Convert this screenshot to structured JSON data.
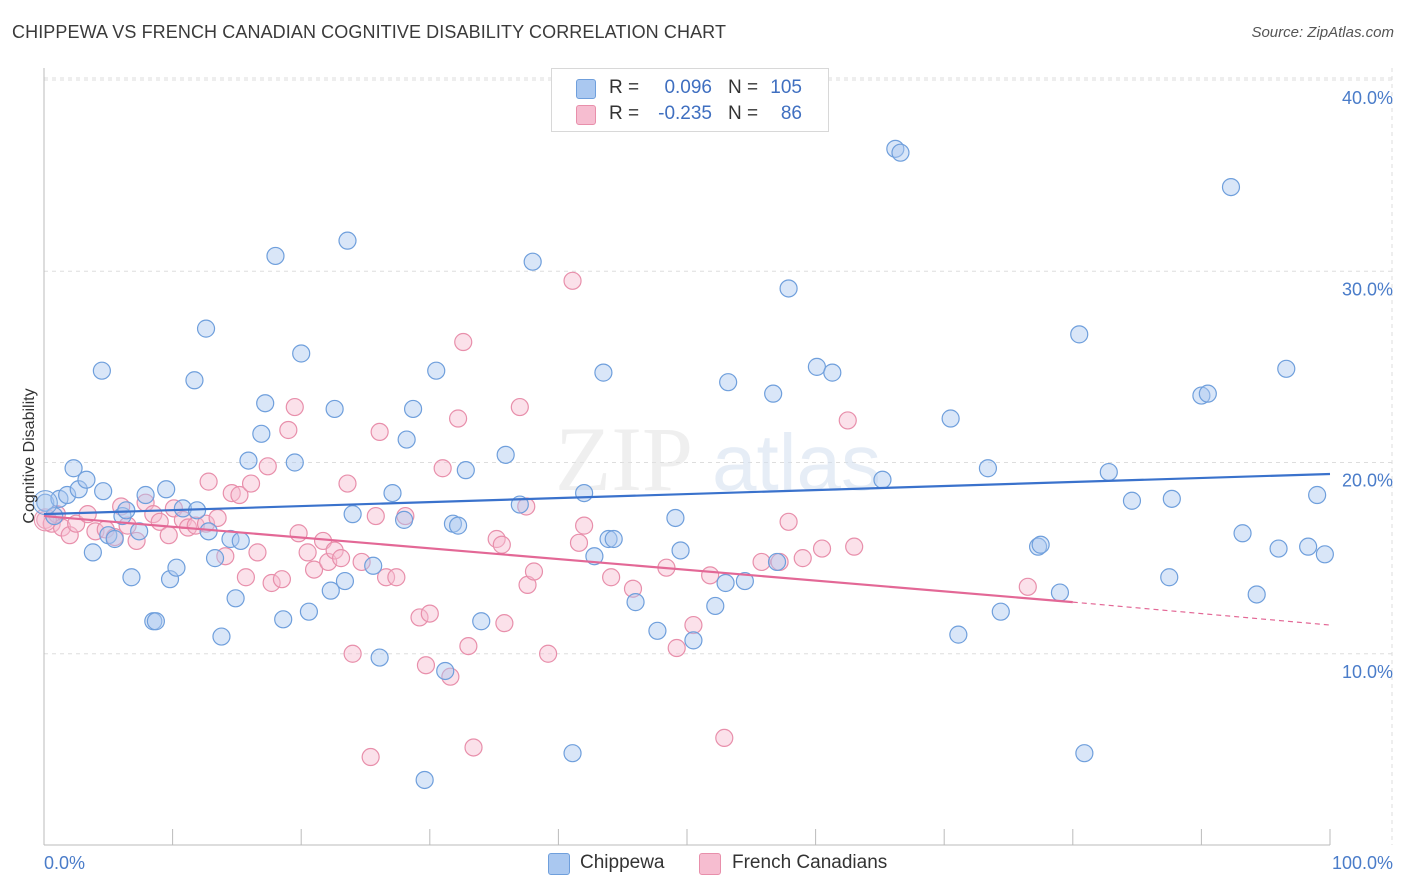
{
  "title": "CHIPPEWA VS FRENCH CANADIAN COGNITIVE DISABILITY CORRELATION CHART",
  "source": "Source: ZipAtlas.com",
  "watermark": {
    "zip": "ZIP",
    "atlas": "atlas"
  },
  "legend": {
    "rows": [
      {
        "r_label": "R =",
        "r_value": "0.096",
        "n_label": "N =",
        "n_value": "105"
      },
      {
        "r_label": "R =",
        "r_value": "-0.235",
        "n_label": "N =",
        "n_value": "86"
      }
    ]
  },
  "bottom_legend": {
    "chippewa": "Chippewa",
    "french": "French Canadians"
  },
  "colors": {
    "chippewa_fill": "#aac8f0",
    "chippewa_stroke": "#6f9fdc",
    "chippewa_line": "#3a72cc",
    "french_fill": "#f6bdd0",
    "french_stroke": "#e88fab",
    "french_line": "#e36896",
    "tick_text": "#4a7cc9",
    "grid": "#dddddd"
  },
  "chart_data": {
    "type": "scatter",
    "title": "CHIPPEWA VS FRENCH CANADIAN COGNITIVE DISABILITY CORRELATION CHART",
    "xlabel": "",
    "ylabel": "Cognitive Disability",
    "xlim": [
      0,
      100
    ],
    "ylim": [
      0,
      43
    ],
    "y_ticks": [
      10,
      20,
      30,
      40
    ],
    "y_tick_labels": [
      "10.0%",
      "20.0%",
      "30.0%",
      "40.0%"
    ],
    "x_tick_labels": [
      "0.0%",
      "100.0%"
    ],
    "grid": true,
    "legend_position": "top-center",
    "series": [
      {
        "name": "Chippewa",
        "R": 0.096,
        "N": 105,
        "trend": {
          "x": [
            0,
            100
          ],
          "y": [
            17.3,
            19.4
          ]
        },
        "points": [
          [
            0.1,
            17.9
          ],
          [
            0.8,
            17.2
          ],
          [
            1.2,
            18.1
          ],
          [
            1.8,
            18.3
          ],
          [
            2.3,
            19.7
          ],
          [
            2.7,
            18.6
          ],
          [
            3.3,
            19.1
          ],
          [
            3.8,
            15.3
          ],
          [
            4.5,
            24.8
          ],
          [
            4.6,
            18.5
          ],
          [
            5.0,
            16.2
          ],
          [
            5.5,
            16.0
          ],
          [
            6.1,
            17.2
          ],
          [
            6.4,
            17.5
          ],
          [
            6.8,
            14.0
          ],
          [
            7.4,
            16.4
          ],
          [
            7.9,
            18.3
          ],
          [
            8.5,
            11.7
          ],
          [
            8.7,
            11.7
          ],
          [
            9.5,
            18.6
          ],
          [
            9.8,
            13.9
          ],
          [
            10.3,
            14.5
          ],
          [
            10.8,
            17.6
          ],
          [
            11.7,
            24.3
          ],
          [
            11.9,
            17.5
          ],
          [
            12.6,
            27.0
          ],
          [
            12.8,
            16.4
          ],
          [
            13.3,
            15.0
          ],
          [
            13.8,
            10.9
          ],
          [
            14.5,
            16.0
          ],
          [
            14.9,
            12.9
          ],
          [
            15.3,
            15.9
          ],
          [
            15.9,
            20.1
          ],
          [
            16.9,
            21.5
          ],
          [
            17.2,
            23.1
          ],
          [
            18.0,
            30.8
          ],
          [
            18.6,
            11.8
          ],
          [
            19.5,
            20.0
          ],
          [
            20.0,
            25.7
          ],
          [
            20.6,
            12.2
          ],
          [
            22.3,
            13.3
          ],
          [
            22.6,
            22.8
          ],
          [
            23.4,
            13.8
          ],
          [
            23.6,
            31.6
          ],
          [
            24.0,
            17.3
          ],
          [
            25.6,
            14.6
          ],
          [
            26.1,
            9.8
          ],
          [
            27.1,
            18.4
          ],
          [
            28.0,
            17.0
          ],
          [
            28.2,
            21.2
          ],
          [
            28.7,
            22.8
          ],
          [
            29.6,
            3.4
          ],
          [
            30.5,
            24.8
          ],
          [
            31.2,
            9.1
          ],
          [
            31.8,
            16.8
          ],
          [
            32.2,
            16.7
          ],
          [
            32.8,
            19.6
          ],
          [
            34.0,
            11.7
          ],
          [
            35.9,
            20.4
          ],
          [
            37.0,
            17.8
          ],
          [
            38.0,
            30.5
          ],
          [
            41.1,
            4.8
          ],
          [
            42.0,
            18.4
          ],
          [
            42.8,
            15.1
          ],
          [
            43.5,
            24.7
          ],
          [
            43.9,
            16.0
          ],
          [
            44.3,
            16.0
          ],
          [
            46.0,
            12.7
          ],
          [
            47.7,
            11.2
          ],
          [
            49.1,
            17.1
          ],
          [
            49.5,
            15.4
          ],
          [
            50.5,
            10.7
          ],
          [
            52.2,
            12.5
          ],
          [
            53.0,
            13.7
          ],
          [
            53.2,
            24.2
          ],
          [
            54.5,
            13.8
          ],
          [
            56.7,
            23.6
          ],
          [
            57.0,
            14.8
          ],
          [
            57.9,
            29.1
          ],
          [
            60.1,
            25.0
          ],
          [
            61.3,
            24.7
          ],
          [
            65.2,
            19.1
          ],
          [
            66.2,
            36.4
          ],
          [
            66.6,
            36.2
          ],
          [
            70.5,
            22.3
          ],
          [
            71.1,
            11.0
          ],
          [
            73.4,
            19.7
          ],
          [
            74.4,
            12.2
          ],
          [
            77.3,
            15.6
          ],
          [
            77.5,
            15.7
          ],
          [
            79.0,
            13.2
          ],
          [
            80.5,
            26.7
          ],
          [
            80.9,
            4.8
          ],
          [
            82.8,
            19.5
          ],
          [
            84.6,
            18.0
          ],
          [
            87.5,
            14.0
          ],
          [
            87.7,
            18.1
          ],
          [
            90.0,
            23.5
          ],
          [
            90.5,
            23.6
          ],
          [
            92.3,
            34.4
          ],
          [
            93.2,
            16.3
          ],
          [
            94.3,
            13.1
          ],
          [
            96.0,
            15.5
          ],
          [
            96.6,
            24.9
          ],
          [
            98.3,
            15.6
          ],
          [
            99.0,
            18.3
          ],
          [
            99.6,
            15.2
          ]
        ]
      },
      {
        "name": "French Canadians",
        "R": -0.235,
        "N": 86,
        "trend": {
          "x": [
            0,
            80
          ],
          "y": [
            17.2,
            12.7
          ]
        },
        "trend_dashed": {
          "x": [
            80,
            100
          ],
          "y": [
            12.7,
            11.5
          ]
        },
        "points": [
          [
            0.1,
            17.0
          ],
          [
            0.6,
            16.8
          ],
          [
            1.0,
            17.3
          ],
          [
            1.4,
            16.6
          ],
          [
            2.0,
            16.2
          ],
          [
            2.5,
            16.8
          ],
          [
            3.4,
            17.3
          ],
          [
            4.0,
            16.4
          ],
          [
            4.8,
            16.5
          ],
          [
            5.5,
            16.1
          ],
          [
            6.0,
            17.7
          ],
          [
            6.5,
            16.7
          ],
          [
            7.2,
            15.9
          ],
          [
            7.9,
            17.9
          ],
          [
            8.5,
            17.3
          ],
          [
            9.0,
            16.9
          ],
          [
            9.7,
            16.2
          ],
          [
            10.1,
            17.6
          ],
          [
            10.8,
            17.0
          ],
          [
            11.2,
            16.6
          ],
          [
            11.8,
            16.7
          ],
          [
            12.6,
            16.8
          ],
          [
            12.8,
            19.0
          ],
          [
            13.5,
            17.1
          ],
          [
            14.1,
            15.1
          ],
          [
            14.6,
            18.4
          ],
          [
            15.2,
            18.3
          ],
          [
            15.7,
            14.0
          ],
          [
            16.1,
            18.9
          ],
          [
            16.6,
            15.3
          ],
          [
            17.4,
            19.8
          ],
          [
            17.7,
            13.7
          ],
          [
            18.5,
            13.9
          ],
          [
            19.0,
            21.7
          ],
          [
            19.5,
            22.9
          ],
          [
            19.8,
            16.3
          ],
          [
            20.5,
            15.3
          ],
          [
            21.0,
            14.4
          ],
          [
            21.7,
            15.9
          ],
          [
            22.1,
            14.8
          ],
          [
            22.6,
            15.4
          ],
          [
            23.1,
            15.0
          ],
          [
            23.6,
            18.9
          ],
          [
            24.0,
            10.0
          ],
          [
            24.7,
            14.8
          ],
          [
            25.4,
            4.6
          ],
          [
            25.8,
            17.2
          ],
          [
            26.1,
            21.6
          ],
          [
            26.6,
            14.0
          ],
          [
            27.4,
            14.0
          ],
          [
            28.1,
            17.2
          ],
          [
            29.2,
            11.9
          ],
          [
            29.7,
            9.4
          ],
          [
            30.0,
            12.1
          ],
          [
            31.0,
            19.7
          ],
          [
            31.6,
            8.8
          ],
          [
            32.2,
            22.3
          ],
          [
            32.6,
            26.3
          ],
          [
            33.0,
            10.4
          ],
          [
            33.4,
            5.1
          ],
          [
            35.2,
            16.0
          ],
          [
            35.8,
            11.6
          ],
          [
            37.0,
            22.9
          ],
          [
            37.6,
            13.6
          ],
          [
            38.1,
            14.3
          ],
          [
            39.2,
            10.0
          ],
          [
            41.1,
            29.5
          ],
          [
            41.6,
            15.8
          ],
          [
            42.0,
            16.7
          ],
          [
            44.1,
            14.0
          ],
          [
            45.8,
            13.4
          ],
          [
            48.4,
            14.5
          ],
          [
            50.5,
            11.5
          ],
          [
            52.9,
            5.6
          ],
          [
            55.8,
            14.8
          ],
          [
            57.2,
            14.8
          ],
          [
            57.9,
            16.9
          ],
          [
            59.0,
            15.0
          ],
          [
            60.5,
            15.5
          ],
          [
            62.5,
            22.2
          ],
          [
            63.0,
            15.6
          ],
          [
            76.5,
            13.5
          ],
          [
            37.5,
            17.7
          ],
          [
            35.6,
            15.7
          ],
          [
            49.2,
            10.3
          ],
          [
            51.8,
            14.1
          ]
        ]
      }
    ]
  }
}
